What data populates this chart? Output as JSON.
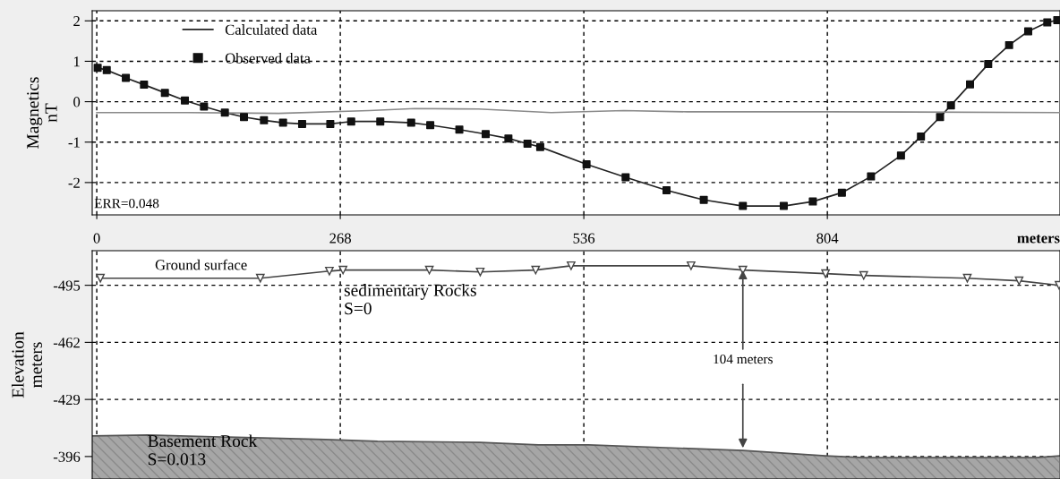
{
  "chart_data": [
    {
      "type": "line",
      "ylabel": "Magnetics\nnT",
      "xlim": [
        -5,
        1060
      ],
      "xticks": [
        0,
        268,
        536,
        804
      ],
      "ylim": [
        -2.8,
        2.25
      ],
      "yticks": [
        -2,
        -1,
        0,
        1,
        2
      ],
      "grid": true,
      "legend": "top left",
      "tick_labels": "y",
      "annotations": [
        "ERR=0.048"
      ],
      "series": [
        {
          "name": "Calculated data",
          "color": "#222222",
          "marker": "none",
          "x": [
            1,
            11,
            32,
            52,
            75,
            97,
            118,
            141,
            162,
            184,
            205,
            226,
            257,
            280,
            312,
            346,
            367,
            399,
            428,
            453,
            474,
            488,
            539,
            582,
            627,
            668,
            711,
            756,
            788,
            820,
            852,
            885,
            907,
            928,
            940,
            961,
            981,
            1004,
            1025,
            1046,
            1057
          ],
          "values": [
            0.84,
            0.78,
            0.59,
            0.42,
            0.22,
            0.03,
            -0.12,
            -0.27,
            -0.38,
            -0.46,
            -0.52,
            -0.55,
            -0.55,
            -0.49,
            -0.49,
            -0.52,
            -0.58,
            -0.69,
            -0.8,
            -0.91,
            -1.04,
            -1.12,
            -1.55,
            -1.87,
            -2.19,
            -2.43,
            -2.58,
            -2.58,
            -2.47,
            -2.25,
            -1.85,
            -1.33,
            -0.86,
            -0.38,
            -0.09,
            0.43,
            0.93,
            1.4,
            1.74,
            1.96,
            2.02
          ]
        },
        {
          "name": "Observed data",
          "type": "scatter",
          "color": "#111111",
          "marker": "square",
          "x": [
            1,
            11,
            32,
            52,
            75,
            97,
            118,
            141,
            162,
            184,
            205,
            226,
            257,
            280,
            312,
            346,
            367,
            399,
            428,
            453,
            474,
            488,
            539,
            582,
            627,
            668,
            711,
            756,
            788,
            820,
            852,
            885,
            907,
            928,
            940,
            961,
            981,
            1004,
            1025,
            1046,
            1057
          ],
          "values": [
            0.84,
            0.78,
            0.59,
            0.42,
            0.22,
            0.03,
            -0.12,
            -0.27,
            -0.38,
            -0.46,
            -0.52,
            -0.55,
            -0.55,
            -0.49,
            -0.49,
            -0.52,
            -0.58,
            -0.69,
            -0.8,
            -0.91,
            -1.04,
            -1.12,
            -1.55,
            -1.87,
            -2.19,
            -2.43,
            -2.58,
            -2.58,
            -2.47,
            -2.25,
            -1.85,
            -1.33,
            -0.86,
            -0.38,
            -0.09,
            0.43,
            0.93,
            1.4,
            1.74,
            1.96,
            2.02
          ]
        },
        {
          "type": "line",
          "color": "#8a8a8a",
          "marker": "none",
          "x": [
            0,
            100,
            200,
            300,
            350,
            420,
            500,
            580,
            650,
            804,
            1060
          ],
          "values": [
            -0.27,
            -0.27,
            -0.29,
            -0.22,
            -0.17,
            -0.18,
            -0.27,
            -0.22,
            -0.25,
            -0.25,
            -0.27
          ]
        }
      ]
    },
    {
      "type": "area",
      "ylabel": "Elevation\nmeters",
      "xlabel": "meters",
      "xlim": [
        -5,
        1060
      ],
      "xticks": [
        0,
        268,
        536,
        804
      ],
      "ylim": [
        -383,
        -515
      ],
      "yticks": [
        -495,
        -462,
        -429,
        -396
      ],
      "grid": true,
      "annotations": [
        "sedimentary Rocks\nS=0",
        {
          "text": "104 meters",
          "x": 711,
          "y": -503.8
        },
        "Basement Rock\nS=0.013"
      ],
      "series": [
        {
          "name": "Ground surface",
          "type": "line",
          "color": "#444444",
          "marker": "triangle",
          "x": [
            4,
            180,
            256,
            271,
            366,
            422,
            483,
            522,
            654,
            711,
            802,
            844,
            958,
            1015,
            1059
          ],
          "values": [
            -499.1,
            -499.1,
            -503.2,
            -503.8,
            -503.8,
            -502.7,
            -503.8,
            -506.3,
            -506.3,
            -503.8,
            -501.7,
            -500.7,
            -499.1,
            -497.6,
            -495
          ]
        },
        {
          "color": "#a6a6a6",
          "x": [
            -5,
            56,
            252,
            309,
            422,
            486,
            541,
            711,
            802,
            844,
            1034,
            1059
          ],
          "values": [
            -407.9,
            -408.4,
            -405.8,
            -404.8,
            -404.2,
            -402.7,
            -402.7,
            -399.5,
            -396.4,
            -395.4,
            -395.4,
            -396.4
          ]
        }
      ]
    }
  ]
}
